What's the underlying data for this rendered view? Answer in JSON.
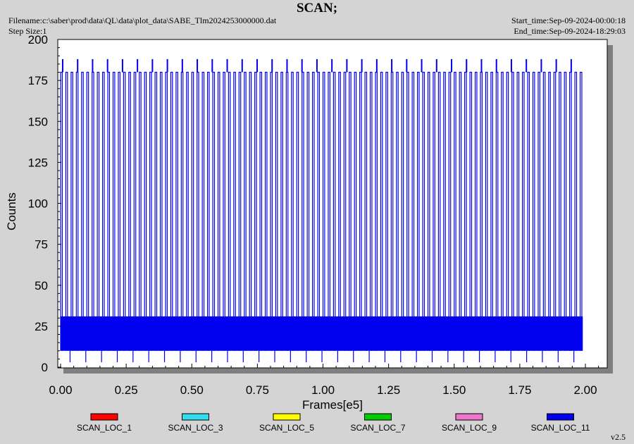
{
  "header": {
    "title": "SCAN;",
    "filename": "Filename:c:\\saber\\prod\\data\\QL\\data\\plot_data\\SABE_Tlm2024253000000.dat",
    "step_size": "Step Size:1",
    "start_time": "Start_time:Sep-09-2024-00:00:18",
    "end_time": "End_time:Sep-09-2024-18:29:03"
  },
  "version": "v2.5",
  "chart_data": {
    "type": "line",
    "title": "SCAN;",
    "xlabel": "Frames[e5]",
    "ylabel": "Counts",
    "xlim": [
      0,
      2.1
    ],
    "ylim": [
      0,
      200
    ],
    "x_ticks": [
      0.0,
      0.25,
      0.5,
      0.75,
      1.0,
      1.25,
      1.5,
      1.75,
      2.0
    ],
    "x_tick_labels": [
      "0.00",
      "0.25",
      "0.50",
      "0.75",
      "1.00",
      "1.25",
      "1.50",
      "1.75",
      "2.00"
    ],
    "y_ticks": [
      0,
      25,
      50,
      75,
      100,
      125,
      150,
      175,
      200
    ],
    "y_tick_labels": [
      "0",
      "25",
      "50",
      "75",
      "100",
      "125",
      "150",
      "175",
      "200"
    ],
    "legend_position": "bottom",
    "series": [
      {
        "name": "SCAN_LOC_1",
        "color": "#ff0000",
        "values": []
      },
      {
        "name": "SCAN_LOC_3",
        "color": "#33ddee",
        "values": []
      },
      {
        "name": "SCAN_LOC_5",
        "color": "#ffff00",
        "values": []
      },
      {
        "name": "SCAN_LOC_7",
        "color": "#00cc00",
        "values": []
      },
      {
        "name": "SCAN_LOC_9",
        "color": "#ee77cc",
        "values": []
      },
      {
        "name": "SCAN_LOC_11",
        "color": "#0000ee",
        "pattern": {
          "x_start": 0.0,
          "x_end": 1.99,
          "scan_period": 0.02,
          "peak_value": 180,
          "secondary_peak_value": 188,
          "secondary_peak_period": 0.057,
          "band_low": 10,
          "band_high": 31,
          "dip_value": 3
        }
      }
    ]
  }
}
